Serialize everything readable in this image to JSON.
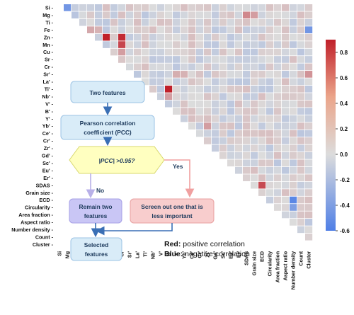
{
  "chart_data": {
    "type": "heatmap",
    "variables": [
      "Si",
      "Mg",
      "Ti",
      "Fe",
      "Zn",
      "Mn",
      "Cu",
      "Sr",
      "Cr",
      "Sr'",
      "La'",
      "Ti'",
      "Nb'",
      "V'",
      "B'",
      "Y'",
      "Yb'",
      "Ce'",
      "Cr'",
      "Zr'",
      "Gd'",
      "Sc'",
      "Eu'",
      "Er'",
      "SDAS",
      "Grain size",
      "ECD",
      "Circularity",
      "Area fraction",
      "Aspect ratio",
      "Number density",
      "Count",
      "Cluster"
    ],
    "triangle": "upper",
    "colorbar": {
      "min": -0.6,
      "max": 0.9,
      "ticks": [
        "0.8",
        "0.6",
        "0.4",
        "0.2",
        "0.0",
        "-0.2",
        "-0.4",
        "-0.6"
      ],
      "tick_values": [
        0.8,
        0.6,
        0.4,
        0.2,
        0.0,
        -0.2,
        -0.4,
        -0.6
      ]
    },
    "notable_cells": [
      {
        "row": "Si",
        "col": "Mg",
        "value": -0.45
      },
      {
        "row": "Si",
        "col": "Ti",
        "value": -0.1
      },
      {
        "row": "Mg",
        "col": "Ti",
        "value": -0.15
      },
      {
        "row": "Fe",
        "col": "Zn",
        "value": 0.25
      },
      {
        "row": "Fe",
        "col": "Mn",
        "value": 0.2
      },
      {
        "row": "Zn",
        "col": "Cu",
        "value": 0.92
      },
      {
        "row": "Zn",
        "col": "Cr",
        "value": 0.85
      },
      {
        "row": "Mn",
        "col": "Cr",
        "value": 0.72
      },
      {
        "row": "Cu",
        "col": "Cr",
        "value": 0.3
      },
      {
        "row": "Sr'",
        "col": "Y'",
        "value": 0.22
      },
      {
        "row": "Sr'",
        "col": "Yb'",
        "value": 0.2
      },
      {
        "row": "Sr'",
        "col": "Cluster",
        "value": 0.35
      },
      {
        "row": "Ti'",
        "col": "B'",
        "value": 0.95
      },
      {
        "row": "Nb'",
        "col": "B'",
        "value": 0.3
      },
      {
        "row": "Yb'",
        "col": "Zr'",
        "value": 0.3
      },
      {
        "row": "SDAS",
        "col": "ECD",
        "value": 0.7
      },
      {
        "row": "ECD",
        "col": "Number density",
        "value": -0.55
      },
      {
        "row": "Circularity",
        "col": "Number density",
        "value": -0.4
      },
      {
        "row": "Fe",
        "col": "Cluster",
        "value": -0.45
      },
      {
        "row": "Mg",
        "col": "SDAS",
        "value": 0.4
      },
      {
        "row": "Mg",
        "col": "Grain size",
        "value": 0.3
      }
    ],
    "other_cells": "near zero (light grey)"
  },
  "flowchart": {
    "nodes": {
      "two_features": "Two features",
      "pcc_line1": "Pearson correlation",
      "pcc_line2": "coefficient (PCC)",
      "decision": "|PCC| >0.95?",
      "remain_line1": "Remain two",
      "remain_line2": "features",
      "screen_line1": "Screen out one that is",
      "screen_line2": "less important",
      "selected_line1": "Selected",
      "selected_line2": "features"
    },
    "edges": {
      "yes": "Yes",
      "no": "No"
    }
  },
  "legend_note": {
    "red_key": "Red:",
    "red_text": " positive correlation",
    "blue_key": "Blue:",
    "blue_text": " negative correlation"
  },
  "colors": {
    "negative": "#4f7fe6",
    "neutral": "#dcdcdc",
    "positive": "#c0202a",
    "flow_blue": "#d9ecf8",
    "flow_yellow": "#ffffc0",
    "flow_purple": "#c9c6f5",
    "flow_pink": "#f8cdcd"
  }
}
